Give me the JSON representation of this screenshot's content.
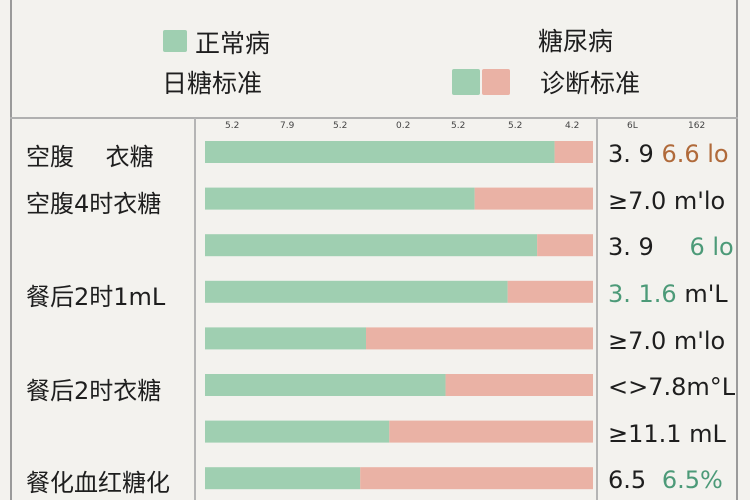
{
  "legend": {
    "left_title": "正常病",
    "left_subtitle": "日糖标准",
    "right_title": "糖尿病",
    "right_subtitle": "诊断标准"
  },
  "colors": {
    "normal": "#9fcfb1",
    "abnormal": "#eab2a5",
    "frame": "#9a9a9a"
  },
  "chart_data": {
    "type": "bar",
    "stacked": true,
    "orientation": "horizontal",
    "tick_labels": [
      "5.2",
      "7.9",
      "5.2",
      "0.2",
      "5.2",
      "5.2",
      "4.2"
    ],
    "right_ticks": [
      "6L",
      "162"
    ],
    "row_labels": [
      "空腹　 衣糖",
      "空腹4时衣糖",
      "",
      "餐后2时1mL",
      "",
      "餐后2时衣糖",
      "",
      "餐化血红糖化"
    ],
    "series": [
      {
        "values": [
          0.901,
          0.695,
          0.856,
          0.78,
          0.415,
          0.62,
          0.475,
          0.4
        ]
      },
      {
        "values": [
          0.099,
          0.305,
          0.144,
          0.22,
          0.585,
          0.38,
          0.525,
          0.6
        ]
      }
    ],
    "value_labels": [
      {
        "main": "3. 9",
        "accent": "6.6 lo",
        "accent_color": "orange"
      },
      {
        "main": "≥7.0 m'lo",
        "accent": "",
        "accent_color": ""
      },
      {
        "main": "3. 9",
        "accent": "6 lo",
        "accent_color": "green"
      },
      {
        "main": "",
        "accent": "3. 1.6",
        "tail": " m'L",
        "accent_color": "green"
      },
      {
        "main": "≥7.0 m'lo",
        "accent": "",
        "accent_color": ""
      },
      {
        "main": "<>7.8m°L",
        "accent": "",
        "accent_color": ""
      },
      {
        "main": "≥11.1 mL",
        "accent": "",
        "accent_color": ""
      },
      {
        "main": "6.5",
        "accent": "6.5%",
        "accent_color": "green"
      }
    ]
  }
}
